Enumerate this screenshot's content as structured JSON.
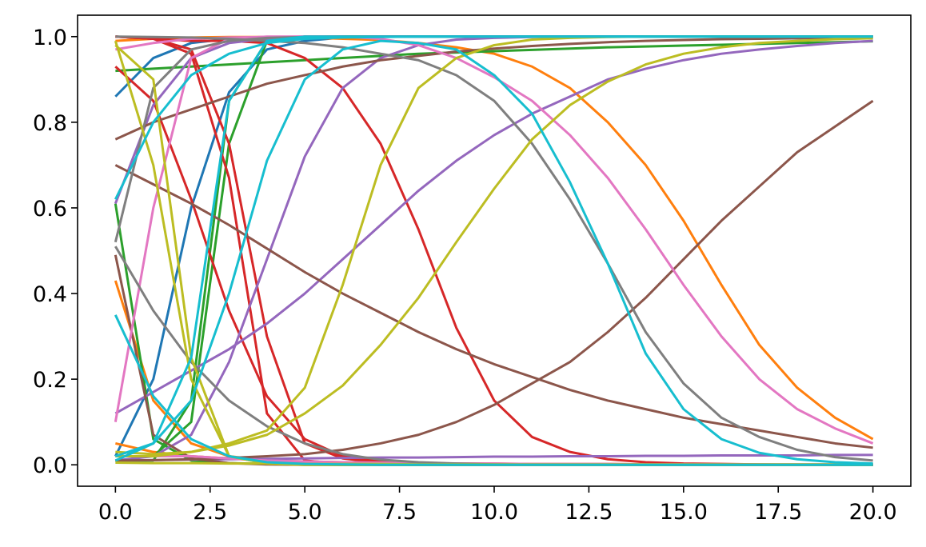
{
  "chart_data": {
    "type": "line",
    "title": "",
    "xlabel": "",
    "ylabel": "",
    "xlim": [
      -1.0,
      21.0
    ],
    "ylim": [
      -0.05,
      1.05
    ],
    "grid": false,
    "legend": "none",
    "xticks": [
      0.0,
      2.5,
      5.0,
      7.5,
      10.0,
      12.5,
      15.0,
      17.5,
      20.0
    ],
    "xtick_labels": [
      "0.0",
      "2.5",
      "5.0",
      "7.5",
      "10.0",
      "12.5",
      "15.0",
      "17.5",
      "20.0"
    ],
    "yticks": [
      0.0,
      0.2,
      0.4,
      0.6,
      0.8,
      1.0
    ],
    "ytick_labels": [
      "0.0",
      "0.2",
      "0.4",
      "0.6",
      "0.8",
      "1.0"
    ],
    "x": [
      0,
      1,
      2,
      3,
      4,
      5,
      6,
      7,
      8,
      9,
      10,
      11,
      12,
      13,
      14,
      15,
      16,
      17,
      18,
      19,
      20
    ],
    "series": [
      {
        "color": "#1f77b4",
        "values": [
          0.86,
          0.95,
          0.985,
          0.995,
          0.998,
          0.999,
          1,
          1,
          1,
          1,
          1,
          1,
          1,
          1,
          1,
          1,
          1,
          1,
          1,
          1,
          1
        ]
      },
      {
        "color": "#1f77b4",
        "values": [
          0.02,
          0.2,
          0.6,
          0.87,
          0.97,
          0.99,
          0.998,
          1,
          1,
          1,
          1,
          1,
          1,
          1,
          1,
          1,
          1,
          1,
          1,
          1,
          1
        ]
      },
      {
        "color": "#ff7f0e",
        "values": [
          0.99,
          0.995,
          0.998,
          0.999,
          0.999,
          0.998,
          0.995,
          0.992,
          0.985,
          0.975,
          0.96,
          0.93,
          0.88,
          0.8,
          0.7,
          0.57,
          0.42,
          0.28,
          0.18,
          0.11,
          0.06
        ]
      },
      {
        "color": "#ff7f0e",
        "values": [
          0.43,
          0.15,
          0.05,
          0.02,
          0.01,
          0.005,
          0.002,
          0.001,
          0,
          0,
          0,
          0,
          0,
          0,
          0,
          0,
          0,
          0,
          0,
          0,
          0
        ]
      },
      {
        "color": "#ff7f0e",
        "values": [
          0.05,
          0.03,
          0.02,
          0.015,
          0.01,
          0.008,
          0.006,
          0.005,
          0.004,
          0.003,
          0.003,
          0.002,
          0.002,
          0.002,
          0.001,
          0.001,
          0.001,
          0.001,
          0.001,
          0.001,
          0.001
        ]
      },
      {
        "color": "#2ca02c",
        "values": [
          0.92,
          0.925,
          0.93,
          0.935,
          0.94,
          0.945,
          0.95,
          0.955,
          0.96,
          0.963,
          0.966,
          0.969,
          0.972,
          0.975,
          0.977,
          0.979,
          0.981,
          0.983,
          0.985,
          0.987,
          0.989
        ]
      },
      {
        "color": "#2ca02c",
        "values": [
          0.02,
          0.02,
          0.1,
          0.75,
          0.99,
          1,
          1,
          1,
          1,
          1,
          1,
          1,
          1,
          1,
          1,
          1,
          1,
          1,
          1,
          1,
          1
        ]
      },
      {
        "color": "#2ca02c",
        "values": [
          0.61,
          0.06,
          0.01,
          0.004,
          0.002,
          0.001,
          0,
          0,
          0,
          0,
          0,
          0,
          0,
          0,
          0,
          0,
          0,
          0,
          0,
          0,
          0
        ]
      },
      {
        "color": "#2ca02c",
        "values": [
          0.01,
          0.01,
          0.15,
          0.85,
          0.99,
          1,
          1,
          1,
          1,
          1,
          1,
          1,
          1,
          1,
          1,
          1,
          1,
          1,
          1,
          1,
          1
        ]
      },
      {
        "color": "#d62728",
        "values": [
          1,
          0.995,
          0.99,
          0.99,
          0.985,
          0.95,
          0.88,
          0.75,
          0.55,
          0.32,
          0.15,
          0.065,
          0.03,
          0.013,
          0.006,
          0.003,
          0.002,
          0.001,
          0,
          0,
          0
        ]
      },
      {
        "color": "#d62728",
        "values": [
          0.93,
          0.85,
          0.62,
          0.36,
          0.16,
          0.06,
          0.02,
          0.01,
          0.004,
          0.002,
          0.001,
          0,
          0,
          0,
          0,
          0,
          0,
          0,
          0,
          0,
          0
        ]
      },
      {
        "color": "#d62728",
        "values": [
          1,
          0.995,
          0.97,
          0.75,
          0.3,
          0.05,
          0.015,
          0.005,
          0.002,
          0.001,
          0,
          0,
          0,
          0,
          0,
          0,
          0,
          0,
          0,
          0,
          0
        ]
      },
      {
        "color": "#d62728",
        "values": [
          1,
          0.995,
          0.96,
          0.67,
          0.12,
          0.01,
          0.002,
          0,
          0,
          0,
          0,
          0,
          0,
          0,
          0,
          0,
          0,
          0,
          0,
          0,
          0
        ]
      },
      {
        "color": "#9467bd",
        "values": [
          0.61,
          0.84,
          0.95,
          0.985,
          0.995,
          0.998,
          0.999,
          1,
          1,
          1,
          1,
          1,
          1,
          1,
          1,
          1,
          1,
          1,
          1,
          1,
          1
        ]
      },
      {
        "color": "#9467bd",
        "values": [
          0.12,
          0.17,
          0.22,
          0.27,
          0.33,
          0.4,
          0.48,
          0.56,
          0.64,
          0.71,
          0.77,
          0.82,
          0.86,
          0.9,
          0.925,
          0.945,
          0.96,
          0.97,
          0.978,
          0.985,
          0.99
        ]
      },
      {
        "color": "#9467bd",
        "values": [
          0.01,
          0.02,
          0.07,
          0.24,
          0.48,
          0.72,
          0.88,
          0.95,
          0.98,
          0.993,
          0.997,
          0.999,
          1,
          1,
          1,
          1,
          1,
          1,
          1,
          1,
          1
        ]
      },
      {
        "color": "#9467bd",
        "values": [
          0.01,
          0.011,
          0.012,
          0.013,
          0.014,
          0.015,
          0.016,
          0.017,
          0.017,
          0.018,
          0.019,
          0.019,
          0.02,
          0.02,
          0.021,
          0.021,
          0.022,
          0.022,
          0.022,
          0.023,
          0.023
        ]
      },
      {
        "color": "#8c564b",
        "values": [
          0.76,
          0.8,
          0.83,
          0.86,
          0.89,
          0.91,
          0.93,
          0.945,
          0.955,
          0.965,
          0.972,
          0.978,
          0.983,
          0.987,
          0.99,
          0.992,
          0.994,
          0.995,
          0.996,
          0.997,
          0.998
        ]
      },
      {
        "color": "#8c564b",
        "values": [
          0.7,
          0.655,
          0.61,
          0.56,
          0.505,
          0.45,
          0.4,
          0.355,
          0.31,
          0.27,
          0.235,
          0.205,
          0.175,
          0.15,
          0.13,
          0.11,
          0.095,
          0.08,
          0.065,
          0.05,
          0.04
        ]
      },
      {
        "color": "#8c564b",
        "values": [
          0.49,
          0.07,
          0.015,
          0.004,
          0.001,
          0,
          0,
          0,
          0,
          0,
          0,
          0,
          0,
          0,
          0,
          0,
          0,
          0,
          0,
          0,
          0
        ]
      },
      {
        "color": "#8c564b",
        "values": [
          0.01,
          0.011,
          0.013,
          0.016,
          0.02,
          0.025,
          0.035,
          0.05,
          0.07,
          0.1,
          0.14,
          0.19,
          0.24,
          0.31,
          0.39,
          0.48,
          0.57,
          0.65,
          0.73,
          0.79,
          0.85
        ]
      },
      {
        "color": "#e377c2",
        "values": [
          0.97,
          0.985,
          0.995,
          0.998,
          0.999,
          1,
          1,
          0.995,
          0.98,
          0.95,
          0.905,
          0.85,
          0.77,
          0.67,
          0.55,
          0.42,
          0.3,
          0.2,
          0.13,
          0.085,
          0.05
        ]
      },
      {
        "color": "#e377c2",
        "values": [
          0.1,
          0.6,
          0.95,
          0.995,
          1,
          1,
          1,
          1,
          1,
          1,
          1,
          1,
          1,
          1,
          1,
          1,
          1,
          1,
          1,
          1,
          1
        ]
      },
      {
        "color": "#e377c2",
        "values": [
          0.02,
          0.02,
          0.02,
          0.015,
          0.01,
          0.008,
          0.006,
          0.005,
          0.004,
          0.003,
          0.003,
          0.002,
          0.002,
          0.002,
          0.001,
          0.001,
          0.001,
          0.001,
          0.001,
          0.001,
          0.001
        ]
      },
      {
        "color": "#7f7f7f",
        "values": [
          1,
          0.999,
          0.998,
          0.995,
          0.99,
          0.985,
          0.975,
          0.96,
          0.945,
          0.91,
          0.85,
          0.75,
          0.62,
          0.47,
          0.31,
          0.19,
          0.11,
          0.065,
          0.035,
          0.018,
          0.01
        ]
      },
      {
        "color": "#7f7f7f",
        "values": [
          0.52,
          0.88,
          0.97,
          0.99,
          0.997,
          0.999,
          1,
          1,
          1,
          1,
          1,
          1,
          1,
          1,
          1,
          1,
          1,
          1,
          1,
          1,
          1
        ]
      },
      {
        "color": "#7f7f7f",
        "values": [
          0.51,
          0.36,
          0.24,
          0.15,
          0.09,
          0.05,
          0.025,
          0.012,
          0.006,
          0.003,
          0.001,
          0,
          0,
          0,
          0,
          0,
          0,
          0,
          0,
          0,
          0
        ]
      },
      {
        "color": "#bcbd22",
        "values": [
          0.99,
          0.7,
          0.2,
          0.02,
          0.003,
          0,
          0,
          0,
          0,
          0,
          0,
          0,
          0,
          0,
          0,
          0,
          0,
          0,
          0,
          0,
          0
        ]
      },
      {
        "color": "#bcbd22",
        "values": [
          0.98,
          0.9,
          0.25,
          0.02,
          0.003,
          0,
          0,
          0,
          0,
          0,
          0,
          0,
          0,
          0,
          0,
          0,
          0,
          0,
          0,
          0,
          0
        ]
      },
      {
        "color": "#bcbd22",
        "values": [
          0.03,
          0.025,
          0.03,
          0.045,
          0.07,
          0.12,
          0.185,
          0.28,
          0.39,
          0.52,
          0.645,
          0.76,
          0.84,
          0.895,
          0.935,
          0.96,
          0.975,
          0.985,
          0.99,
          0.994,
          0.996
        ]
      },
      {
        "color": "#bcbd22",
        "values": [
          0.02,
          0.02,
          0.03,
          0.05,
          0.08,
          0.18,
          0.42,
          0.7,
          0.88,
          0.95,
          0.98,
          0.993,
          0.997,
          0.999,
          1,
          1,
          1,
          1,
          1,
          1,
          1
        ]
      },
      {
        "color": "#bcbd22",
        "values": [
          0.005,
          0.004,
          0.004,
          0.003,
          0.003,
          0.002,
          0.002,
          0.002,
          0.001,
          0.001,
          0.001,
          0.001,
          0.001,
          0.001,
          0.001,
          0.001,
          0.001,
          0.001,
          0.001,
          0.001,
          0.001
        ]
      },
      {
        "color": "#17becf",
        "values": [
          0.35,
          0.16,
          0.06,
          0.02,
          0.006,
          0.002,
          0.001,
          0,
          0,
          0,
          0,
          0,
          0,
          0,
          0,
          0,
          0,
          0,
          0,
          0,
          0
        ]
      },
      {
        "color": "#17becf",
        "values": [
          0.02,
          0.05,
          0.15,
          0.4,
          0.71,
          0.9,
          0.97,
          0.99,
          0.985,
          0.97,
          0.91,
          0.82,
          0.66,
          0.47,
          0.26,
          0.13,
          0.06,
          0.028,
          0.013,
          0.006,
          0.003
        ]
      },
      {
        "color": "#17becf",
        "values": [
          0.62,
          0.8,
          0.91,
          0.96,
          0.985,
          0.995,
          0.998,
          0.999,
          1,
          1,
          1,
          1,
          1,
          1,
          1,
          1,
          1,
          1,
          1,
          1,
          1
        ]
      },
      {
        "color": "#17becf",
        "values": [
          0.01,
          0.05,
          0.25,
          0.85,
          0.99,
          1,
          1,
          1,
          1,
          1,
          1,
          1,
          1,
          1,
          1,
          1,
          1,
          1,
          1,
          1,
          1
        ]
      }
    ]
  }
}
